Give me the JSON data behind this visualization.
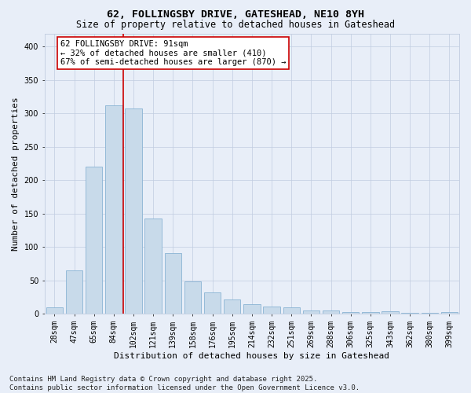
{
  "title": "62, FOLLINGSBY DRIVE, GATESHEAD, NE10 8YH",
  "subtitle": "Size of property relative to detached houses in Gateshead",
  "xlabel": "Distribution of detached houses by size in Gateshead",
  "ylabel": "Number of detached properties",
  "categories": [
    "28sqm",
    "47sqm",
    "65sqm",
    "84sqm",
    "102sqm",
    "121sqm",
    "139sqm",
    "158sqm",
    "176sqm",
    "195sqm",
    "214sqm",
    "232sqm",
    "251sqm",
    "269sqm",
    "288sqm",
    "306sqm",
    "325sqm",
    "343sqm",
    "362sqm",
    "380sqm",
    "399sqm"
  ],
  "bar_values": [
    9,
    65,
    220,
    312,
    307,
    143,
    91,
    48,
    32,
    21,
    14,
    11,
    9,
    5,
    5,
    3,
    2,
    4,
    1,
    1,
    3
  ],
  "bar_color": "#c8daea",
  "bar_edge_color": "#8ab4d4",
  "vline_x": 3.5,
  "vline_color": "#cc0000",
  "annotation_text": "62 FOLLINGSBY DRIVE: 91sqm\n← 32% of detached houses are smaller (410)\n67% of semi-detached houses are larger (870) →",
  "annotation_box_color": "#ffffff",
  "annotation_box_edge": "#cc0000",
  "ylim": [
    0,
    420
  ],
  "yticks": [
    0,
    50,
    100,
    150,
    200,
    250,
    300,
    350,
    400
  ],
  "footer": "Contains HM Land Registry data © Crown copyright and database right 2025.\nContains public sector information licensed under the Open Government Licence v3.0.",
  "background_color": "#e8eef8",
  "plot_background": "#e8eef8",
  "grid_color": "#c0cce0",
  "title_fontsize": 9.5,
  "subtitle_fontsize": 8.5,
  "axis_label_fontsize": 8,
  "tick_fontsize": 7,
  "footer_fontsize": 6.5,
  "annotation_fontsize": 7.5
}
